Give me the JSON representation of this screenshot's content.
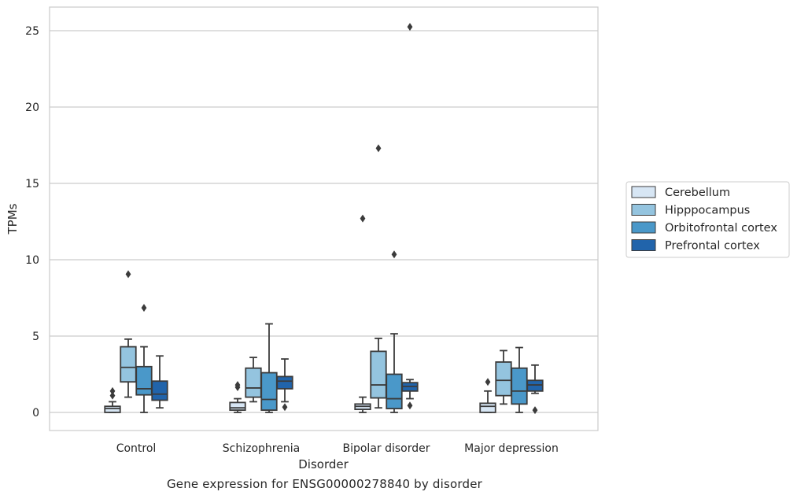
{
  "caption": "Gene expression for ENSG00000278840 by disorder",
  "chart_data": {
    "type": "box",
    "title": "",
    "xlabel": "Disorder",
    "ylabel": "TPMs",
    "ylim": [
      -1.2,
      26.6
    ],
    "yticks": [
      0,
      5,
      10,
      15,
      20,
      25
    ],
    "grid": true,
    "legend_position": "right",
    "categories": [
      "Control",
      "Schizophrenia",
      "Bipolar disorder",
      "Major depression"
    ],
    "series": [
      {
        "name": "Cerebellum",
        "color": "#d7e6f4",
        "boxes": [
          {
            "min": 0.0,
            "q1": 0.0,
            "median": 0.25,
            "q3": 0.4,
            "max": 0.7,
            "outliers": [
              1.1,
              1.4
            ]
          },
          {
            "min": 0.0,
            "q1": 0.15,
            "median": 0.3,
            "q3": 0.65,
            "max": 0.9,
            "outliers": [
              1.65,
              1.8
            ]
          },
          {
            "min": 0.0,
            "q1": 0.2,
            "median": 0.4,
            "q3": 0.55,
            "max": 1.0,
            "outliers": [
              12.7
            ]
          },
          {
            "min": 0.0,
            "q1": 0.0,
            "median": 0.4,
            "q3": 0.6,
            "max": 1.4,
            "outliers": [
              2.0
            ]
          }
        ]
      },
      {
        "name": "Hipppocampus",
        "color": "#94c4df",
        "boxes": [
          {
            "min": 1.0,
            "q1": 2.0,
            "median": 2.95,
            "q3": 4.3,
            "max": 4.8,
            "outliers": [
              9.05
            ]
          },
          {
            "min": 0.7,
            "q1": 1.0,
            "median": 1.6,
            "q3": 2.9,
            "max": 3.6,
            "outliers": []
          },
          {
            "min": 0.3,
            "q1": 0.95,
            "median": 1.8,
            "q3": 4.0,
            "max": 4.85,
            "outliers": [
              17.3
            ]
          },
          {
            "min": 0.55,
            "q1": 1.1,
            "median": 2.1,
            "q3": 3.3,
            "max": 4.05,
            "outliers": []
          }
        ]
      },
      {
        "name": "Orbitofrontal cortex",
        "color": "#4a98c9",
        "boxes": [
          {
            "min": 0.0,
            "q1": 1.15,
            "median": 1.55,
            "q3": 3.0,
            "max": 4.3,
            "outliers": [
              6.85
            ]
          },
          {
            "min": 0.0,
            "q1": 0.15,
            "median": 0.85,
            "q3": 2.6,
            "max": 5.8,
            "outliers": []
          },
          {
            "min": 0.0,
            "q1": 0.25,
            "median": 0.9,
            "q3": 2.5,
            "max": 5.15,
            "outliers": [
              10.35
            ]
          },
          {
            "min": 0.0,
            "q1": 0.55,
            "median": 1.4,
            "q3": 2.9,
            "max": 4.25,
            "outliers": []
          }
        ]
      },
      {
        "name": "Prefrontal cortex",
        "color": "#2164ab",
        "boxes": [
          {
            "min": 0.3,
            "q1": 0.8,
            "median": 1.2,
            "q3": 2.05,
            "max": 3.7,
            "outliers": []
          },
          {
            "min": 0.7,
            "q1": 1.55,
            "median": 2.05,
            "q3": 2.35,
            "max": 3.5,
            "outliers": [
              0.35
            ]
          },
          {
            "min": 0.9,
            "q1": 1.4,
            "median": 1.7,
            "q3": 1.95,
            "max": 2.15,
            "outliers": [
              0.45,
              25.25
            ]
          },
          {
            "min": 1.25,
            "q1": 1.4,
            "median": 1.8,
            "q3": 2.1,
            "max": 3.1,
            "outliers": [
              0.15
            ]
          }
        ]
      }
    ]
  }
}
